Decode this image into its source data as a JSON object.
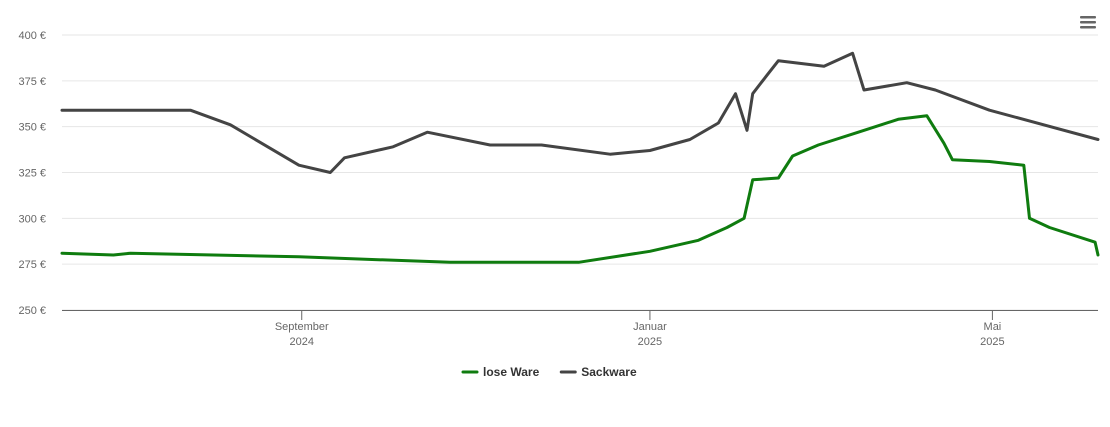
{
  "chart_data": {
    "type": "line",
    "x": [
      "2024-06-09",
      "2024-06-27",
      "2024-07-03",
      "2024-07-24",
      "2024-08-07",
      "2024-08-31",
      "2024-09-11",
      "2024-09-16",
      "2024-10-03",
      "2024-10-15",
      "2024-10-23",
      "2024-11-06",
      "2024-11-24",
      "2024-12-07",
      "2024-12-18",
      "2025-01-01",
      "2025-01-15",
      "2025-01-18",
      "2025-01-25",
      "2025-01-28",
      "2025-01-31",
      "2025-02-03",
      "2025-02-04",
      "2025-02-06",
      "2025-02-11",
      "2025-02-15",
      "2025-02-20",
      "2025-03-01",
      "2025-03-03",
      "2025-03-13",
      "2025-03-15",
      "2025-03-17",
      "2025-03-29",
      "2025-04-01",
      "2025-04-08",
      "2025-04-11",
      "2025-04-14",
      "2025-04-17",
      "2025-04-30",
      "2025-05-12",
      "2025-05-14",
      "2025-05-21",
      "2025-06-06",
      "2025-06-07"
    ],
    "series": [
      {
        "name": "lose Ware",
        "color": "#0f7c0f",
        "values": [
          281,
          280,
          281,
          null,
          null,
          279,
          null,
          null,
          null,
          null,
          276,
          null,
          null,
          276,
          null,
          282,
          null,
          288,
          null,
          295,
          null,
          300,
          null,
          321,
          null,
          322,
          334,
          340,
          null,
          null,
          347,
          null,
          354,
          null,
          356,
          null,
          341,
          332,
          331,
          329,
          300,
          295,
          287,
          280
        ]
      },
      {
        "name": "Sackware",
        "color": "#444444",
        "values": [
          359,
          null,
          null,
          359,
          351,
          329,
          325,
          333,
          339,
          347,
          null,
          340,
          340,
          null,
          335,
          337,
          343,
          null,
          352,
          null,
          368,
          null,
          348,
          368,
          378,
          386,
          null,
          null,
          383,
          390,
          null,
          370,
          null,
          374,
          null,
          370,
          null,
          null,
          359,
          null,
          null,
          null,
          null,
          343
        ]
      }
    ],
    "xlim": [
      "2024-06-09",
      "2025-06-07"
    ],
    "xticks": [
      {
        "value": "2024-09-01",
        "label": "September 2024"
      },
      {
        "value": "2025-01-01",
        "label": "Januar 2025"
      },
      {
        "value": "2025-05-01",
        "label": "Mai 2025"
      }
    ],
    "ylim": [
      250,
      400
    ],
    "yticks": [
      {
        "value": 250,
        "label": "250 €"
      },
      {
        "value": 275,
        "label": "275 €"
      },
      {
        "value": 300,
        "label": "300 €"
      },
      {
        "value": 325,
        "label": "325 €"
      },
      {
        "value": 350,
        "label": "350 €"
      },
      {
        "value": 375,
        "label": "375 €"
      },
      {
        "value": 400,
        "label": "400 €"
      }
    ],
    "grid": true
  }
}
